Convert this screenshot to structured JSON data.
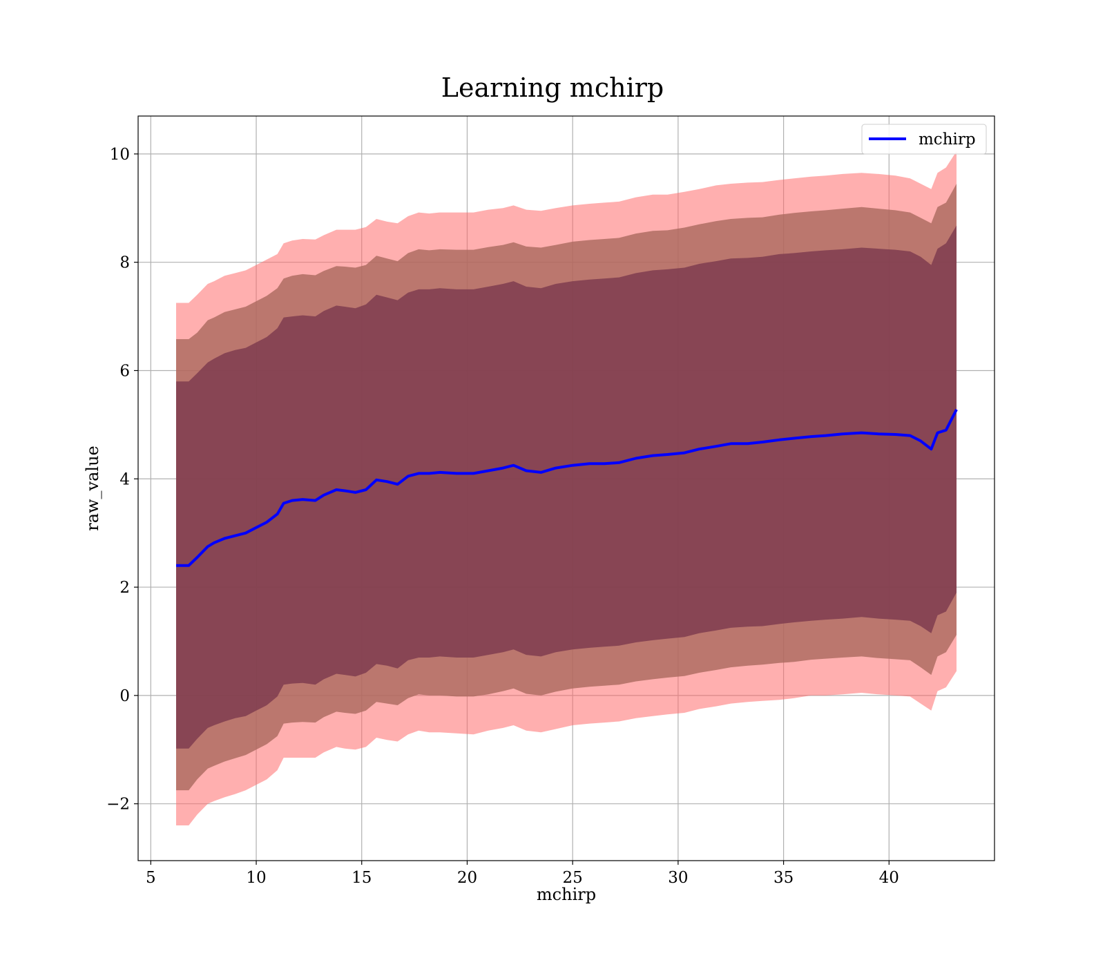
{
  "chart_data": {
    "type": "line",
    "title": "Learning mchirp",
    "xlabel": "mchirp",
    "ylabel": "raw_value",
    "xlim": [
      4.4,
      45
    ],
    "ylim": [
      -3.05,
      10.7
    ],
    "xticks": [
      5,
      10,
      15,
      20,
      25,
      30,
      35,
      40
    ],
    "xtick_labels": [
      "5",
      "10",
      "15",
      "20",
      "25",
      "30",
      "35",
      "40"
    ],
    "yticks": [
      -2,
      0,
      2,
      4,
      6,
      8,
      10
    ],
    "ytick_labels": [
      "−2",
      "0",
      "2",
      "4",
      "6",
      "8",
      "10"
    ],
    "grid": true,
    "legend": {
      "position": "upper-right",
      "entries": [
        "mchirp"
      ]
    },
    "colors": {
      "line": "#0000ff",
      "band_outer": "#ff6666",
      "band_middle": "#a8685c",
      "band_inner": "#7c3a4e",
      "grid": "#b0b0b0"
    },
    "x": [
      6.2,
      6.8,
      7.2,
      7.7,
      8.0,
      8.5,
      9.0,
      9.5,
      10.0,
      10.5,
      11.0,
      11.3,
      11.7,
      12.2,
      12.8,
      13.2,
      13.8,
      14.2,
      14.7,
      15.2,
      15.7,
      16.2,
      16.7,
      17.2,
      17.7,
      18.2,
      18.7,
      19.5,
      20.3,
      21.0,
      21.7,
      22.2,
      22.8,
      23.5,
      24.2,
      25.0,
      25.8,
      26.5,
      27.2,
      28.0,
      28.8,
      29.5,
      30.3,
      31.0,
      31.8,
      32.5,
      33.3,
      34.0,
      34.8,
      35.5,
      36.3,
      37.0,
      37.8,
      38.7,
      39.5,
      40.3,
      41.0,
      41.5,
      42.0,
      42.3,
      42.7,
      43.2
    ],
    "series": [
      {
        "name": "mchirp",
        "values": [
          2.4,
          2.4,
          2.55,
          2.75,
          2.82,
          2.9,
          2.95,
          3.0,
          3.1,
          3.2,
          3.35,
          3.55,
          3.6,
          3.62,
          3.6,
          3.7,
          3.8,
          3.78,
          3.75,
          3.8,
          3.98,
          3.95,
          3.9,
          4.05,
          4.1,
          4.1,
          4.12,
          4.1,
          4.1,
          4.15,
          4.2,
          4.25,
          4.15,
          4.12,
          4.2,
          4.25,
          4.28,
          4.28,
          4.3,
          4.38,
          4.43,
          4.45,
          4.48,
          4.55,
          4.6,
          4.65,
          4.65,
          4.68,
          4.72,
          4.75,
          4.78,
          4.8,
          4.83,
          4.85,
          4.83,
          4.82,
          4.8,
          4.7,
          4.55,
          4.85,
          4.9,
          5.28
        ]
      }
    ],
    "bands": [
      {
        "level": "outer",
        "upper": [
          7.25,
          7.25,
          7.4,
          7.6,
          7.65,
          7.75,
          7.8,
          7.85,
          7.95,
          8.05,
          8.15,
          8.35,
          8.4,
          8.43,
          8.42,
          8.5,
          8.6,
          8.6,
          8.6,
          8.65,
          8.8,
          8.75,
          8.72,
          8.85,
          8.92,
          8.9,
          8.92,
          8.92,
          8.92,
          8.97,
          9.0,
          9.05,
          8.97,
          8.95,
          9.0,
          9.05,
          9.08,
          9.1,
          9.12,
          9.2,
          9.25,
          9.25,
          9.3,
          9.35,
          9.42,
          9.45,
          9.47,
          9.48,
          9.52,
          9.55,
          9.58,
          9.6,
          9.63,
          9.65,
          9.63,
          9.6,
          9.55,
          9.45,
          9.35,
          9.65,
          9.75,
          10.05
        ],
        "lower": [
          -2.4,
          -2.4,
          -2.2,
          -2.0,
          -1.95,
          -1.88,
          -1.82,
          -1.75,
          -1.65,
          -1.55,
          -1.38,
          -1.15,
          -1.15,
          -1.15,
          -1.15,
          -1.05,
          -0.95,
          -0.98,
          -1.0,
          -0.95,
          -0.78,
          -0.82,
          -0.85,
          -0.72,
          -0.65,
          -0.68,
          -0.68,
          -0.7,
          -0.72,
          -0.65,
          -0.6,
          -0.55,
          -0.65,
          -0.68,
          -0.62,
          -0.55,
          -0.52,
          -0.5,
          -0.48,
          -0.42,
          -0.38,
          -0.35,
          -0.32,
          -0.25,
          -0.2,
          -0.15,
          -0.12,
          -0.1,
          -0.08,
          -0.05,
          0.0,
          0.0,
          0.02,
          0.05,
          0.02,
          0.0,
          -0.02,
          -0.15,
          -0.28,
          0.08,
          0.15,
          0.45
        ]
      },
      {
        "level": "middle",
        "upper": [
          6.58,
          6.58,
          6.7,
          6.93,
          6.98,
          7.08,
          7.13,
          7.18,
          7.28,
          7.38,
          7.52,
          7.7,
          7.75,
          7.78,
          7.76,
          7.84,
          7.93,
          7.92,
          7.9,
          7.95,
          8.12,
          8.07,
          8.02,
          8.17,
          8.24,
          8.22,
          8.24,
          8.23,
          8.23,
          8.28,
          8.32,
          8.37,
          8.29,
          8.27,
          8.32,
          8.38,
          8.41,
          8.43,
          8.45,
          8.53,
          8.58,
          8.59,
          8.64,
          8.7,
          8.76,
          8.8,
          8.82,
          8.83,
          8.88,
          8.91,
          8.94,
          8.96,
          8.99,
          9.02,
          8.99,
          8.96,
          8.92,
          8.82,
          8.72,
          9.02,
          9.1,
          9.45
        ]
      },
      {
        "level": "middle",
        "lower": [
          -1.75,
          -1.75,
          -1.55,
          -1.35,
          -1.3,
          -1.22,
          -1.16,
          -1.1,
          -1.0,
          -0.9,
          -0.75,
          -0.52,
          -0.5,
          -0.49,
          -0.5,
          -0.4,
          -0.3,
          -0.32,
          -0.34,
          -0.28,
          -0.12,
          -0.15,
          -0.18,
          -0.05,
          0.02,
          0.0,
          0.0,
          -0.02,
          -0.02,
          0.02,
          0.08,
          0.13,
          0.03,
          0.0,
          0.07,
          0.13,
          0.16,
          0.18,
          0.2,
          0.26,
          0.3,
          0.33,
          0.36,
          0.42,
          0.47,
          0.52,
          0.55,
          0.57,
          0.6,
          0.62,
          0.66,
          0.68,
          0.7,
          0.72,
          0.69,
          0.67,
          0.65,
          0.52,
          0.38,
          0.72,
          0.8,
          1.12
        ]
      },
      {
        "level": "inner",
        "upper": [
          5.8,
          5.8,
          5.95,
          6.15,
          6.22,
          6.32,
          6.38,
          6.42,
          6.52,
          6.62,
          6.78,
          6.98,
          7.0,
          7.02,
          7.0,
          7.1,
          7.2,
          7.18,
          7.15,
          7.22,
          7.4,
          7.35,
          7.3,
          7.44,
          7.5,
          7.5,
          7.52,
          7.5,
          7.5,
          7.55,
          7.6,
          7.65,
          7.55,
          7.52,
          7.6,
          7.65,
          7.68,
          7.7,
          7.72,
          7.8,
          7.85,
          7.87,
          7.9,
          7.97,
          8.02,
          8.07,
          8.08,
          8.1,
          8.15,
          8.17,
          8.2,
          8.22,
          8.24,
          8.27,
          8.25,
          8.23,
          8.2,
          8.1,
          7.95,
          8.25,
          8.35,
          8.68
        ],
        "lower": [
          -0.98,
          -0.98,
          -0.8,
          -0.6,
          -0.55,
          -0.48,
          -0.42,
          -0.38,
          -0.28,
          -0.18,
          -0.02,
          0.2,
          0.22,
          0.23,
          0.2,
          0.3,
          0.4,
          0.38,
          0.35,
          0.42,
          0.58,
          0.55,
          0.5,
          0.65,
          0.7,
          0.7,
          0.72,
          0.7,
          0.7,
          0.75,
          0.8,
          0.85,
          0.75,
          0.72,
          0.8,
          0.85,
          0.88,
          0.9,
          0.92,
          0.98,
          1.02,
          1.05,
          1.08,
          1.15,
          1.2,
          1.25,
          1.27,
          1.28,
          1.32,
          1.35,
          1.38,
          1.4,
          1.42,
          1.45,
          1.42,
          1.4,
          1.38,
          1.28,
          1.15,
          1.48,
          1.55,
          1.9
        ]
      }
    ]
  }
}
